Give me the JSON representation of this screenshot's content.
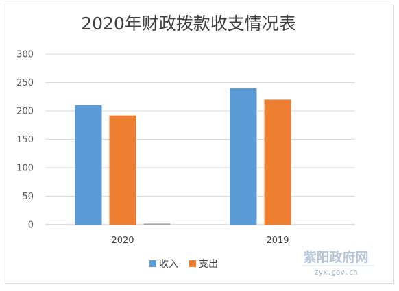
{
  "chart_data": {
    "type": "bar",
    "title": "2020年财政拨款收支情况表",
    "categories": [
      "2020",
      "2019"
    ],
    "series": [
      {
        "name": "收入",
        "values": [
          210,
          240
        ],
        "color": "#5b9bd5"
      },
      {
        "name": "支出",
        "values": [
          192,
          220
        ],
        "color": "#ed7d31"
      },
      {
        "name": "",
        "values": [
          2,
          0
        ],
        "color": "#a5a5a5"
      }
    ],
    "ylim": [
      0,
      300
    ],
    "yticks": [
      0,
      50,
      100,
      150,
      200,
      250,
      300
    ],
    "grid": true,
    "legend": "bottom",
    "xlabel": "",
    "ylabel": ""
  },
  "watermark": {
    "name": "紫阳政府网",
    "url": "zyx.gov.cn"
  }
}
